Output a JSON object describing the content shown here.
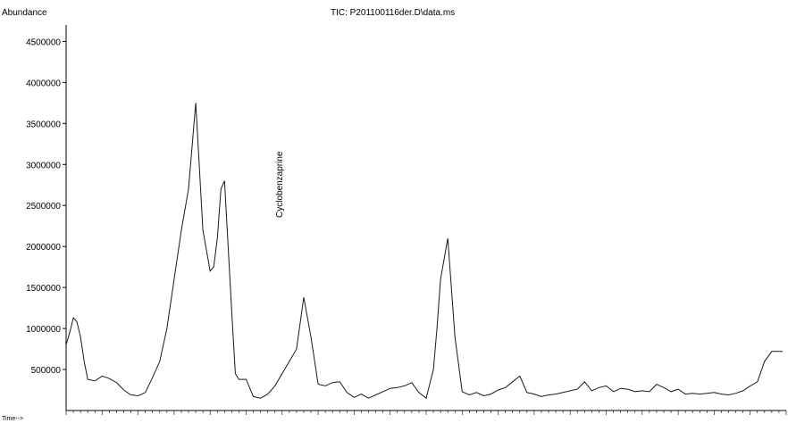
{
  "chart_data": {
    "type": "line",
    "title": "TIC: P201100116der.D\\data.ms",
    "ylabel": "Abundance",
    "xlabel": "Time-->",
    "ylim": [
      0,
      4700000
    ],
    "yticks": [
      500000,
      1000000,
      1500000,
      2000000,
      2500000,
      3000000,
      3500000,
      4000000,
      4500000
    ],
    "ytick_labels": [
      "500000",
      "1000000",
      "1500000",
      "2000000",
      "2500000",
      "3000000",
      "3500000",
      "4000000",
      "4500000"
    ],
    "xlim": [
      0,
      100
    ],
    "x_tick_labels_legible": false,
    "annotations": [
      {
        "text": "Cyclobenzaprine",
        "x": 30.0,
        "y": 2350000
      }
    ],
    "series": [
      {
        "x": [
          0,
          0.5,
          1,
          1.5,
          2,
          2.5,
          3,
          4,
          5,
          6,
          7,
          8,
          9,
          10,
          11,
          12,
          13,
          14,
          15,
          16,
          17,
          18,
          19,
          20,
          20.5,
          21,
          21.5,
          22,
          23,
          23.5,
          24,
          25,
          26,
          27,
          28,
          29,
          30,
          31,
          32,
          33,
          34,
          35,
          36,
          37,
          38,
          39,
          40,
          41,
          42,
          43,
          44,
          45,
          46,
          47,
          48,
          49,
          50,
          51,
          51.5,
          52,
          53,
          54,
          55,
          56,
          57,
          58,
          59,
          60,
          61,
          62,
          63,
          64,
          65,
          66,
          67,
          68,
          69,
          70,
          71,
          72,
          73,
          74,
          75,
          76,
          77,
          78,
          79,
          80,
          81,
          82,
          83,
          84,
          85,
          86,
          87,
          88,
          89,
          90,
          91,
          92,
          93,
          94,
          95,
          96,
          97,
          98,
          99,
          99.5
        ],
        "y": [
          800000,
          950000,
          1130000,
          1080000,
          900000,
          600000,
          380000,
          360000,
          420000,
          390000,
          340000,
          250000,
          190000,
          180000,
          220000,
          400000,
          600000,
          1000000,
          1600000,
          2200000,
          2700000,
          3750000,
          2200000,
          1700000,
          1750000,
          2100000,
          2700000,
          2800000,
          1200000,
          450000,
          380000,
          380000,
          170000,
          150000,
          200000,
          300000,
          450000,
          600000,
          750000,
          1380000,
          900000,
          320000,
          300000,
          340000,
          350000,
          220000,
          160000,
          200000,
          150000,
          190000,
          230000,
          270000,
          280000,
          300000,
          340000,
          220000,
          150000,
          500000,
          1000000,
          1600000,
          2100000,
          900000,
          230000,
          190000,
          220000,
          180000,
          200000,
          250000,
          280000,
          350000,
          420000,
          220000,
          200000,
          170000,
          190000,
          200000,
          220000,
          240000,
          260000,
          350000,
          240000,
          280000,
          300000,
          230000,
          270000,
          260000,
          230000,
          240000,
          230000,
          320000,
          280000,
          230000,
          260000,
          200000,
          210000,
          200000,
          210000,
          220000,
          200000,
          190000,
          210000,
          240000,
          300000,
          350000,
          600000,
          720000,
          720000,
          720000
        ]
      }
    ]
  }
}
